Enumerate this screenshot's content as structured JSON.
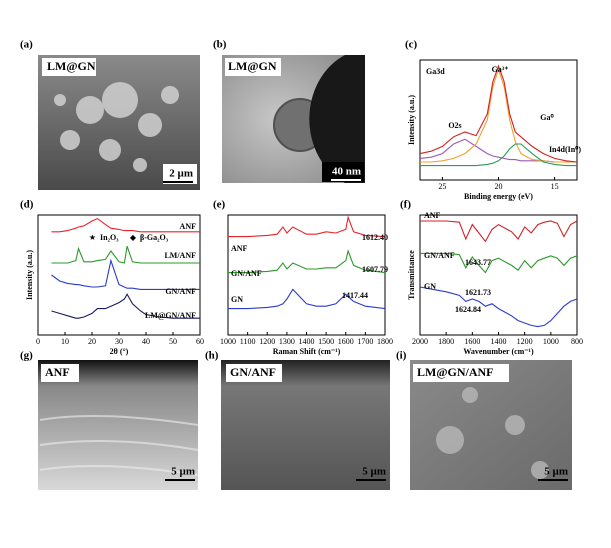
{
  "images": [
    {
      "panel_label": "(a)",
      "caption": "LM@GN",
      "scale_bar": "2 µm"
    },
    {
      "panel_label": "(b)",
      "caption": "LM@GN",
      "scale_bar": "40 nm"
    },
    {
      "panel_label": "(g)",
      "caption": "ANF",
      "scale_bar": "5 µm"
    },
    {
      "panel_label": "(h)",
      "caption": "GN/ANF",
      "scale_bar": "5 µm"
    },
    {
      "panel_label": "(i)",
      "caption": "LM@GN/ANF",
      "scale_bar": "5 µm"
    }
  ],
  "chart_data": [
    {
      "type": "line",
      "panel_label": "(c)",
      "x_label": "Binding energy (eV)",
      "y_label": "Intensity (a.u.)",
      "annotations": [
        "Ga3d",
        "O2s",
        "Ga³⁺",
        "Ga⁰",
        "In4d(In⁰)"
      ],
      "x": [
        27,
        26,
        25,
        24,
        23,
        22,
        21,
        20.5,
        20,
        19.5,
        19,
        18.5,
        18,
        17,
        16,
        15,
        14,
        13
      ],
      "xlim": [
        27,
        13
      ],
      "xticks": [
        25,
        20,
        15
      ],
      "ylim": [
        0,
        1
      ],
      "series": [
        {
          "color": "#9b59b6",
          "values": [
            0.18,
            0.19,
            0.22,
            0.3,
            0.34,
            0.28,
            0.22,
            0.2,
            0.19,
            0.18,
            0.17,
            0.17,
            0.16,
            0.16,
            0.16,
            0.15,
            0.15,
            0.15
          ]
        },
        {
          "color": "#f0a030",
          "values": [
            0.15,
            0.15,
            0.16,
            0.18,
            0.22,
            0.3,
            0.5,
            0.78,
            0.92,
            0.78,
            0.5,
            0.32,
            0.22,
            0.17,
            0.16,
            0.15,
            0.15,
            0.15
          ]
        },
        {
          "color": "#2e9a5a",
          "values": [
            0.12,
            0.12,
            0.12,
            0.12,
            0.12,
            0.12,
            0.13,
            0.14,
            0.16,
            0.2,
            0.26,
            0.3,
            0.3,
            0.22,
            0.15,
            0.13,
            0.12,
            0.12
          ]
        },
        {
          "color": "#d62020",
          "values": [
            0.22,
            0.24,
            0.28,
            0.36,
            0.4,
            0.37,
            0.55,
            0.82,
            0.95,
            0.82,
            0.55,
            0.4,
            0.36,
            0.28,
            0.22,
            0.18,
            0.16,
            0.15
          ]
        }
      ]
    },
    {
      "type": "line",
      "panel_label": "(d)",
      "x_label": "2θ (°)",
      "y_label": "Intensity (a.u.)",
      "annotations": [
        "In₂O₃",
        "β-Ga₂O₃"
      ],
      "x": [
        5,
        8,
        11,
        14,
        15,
        17,
        20,
        22,
        25,
        27,
        30,
        32,
        33,
        35,
        38,
        40,
        45,
        50,
        55,
        60
      ],
      "xlim": [
        0,
        60
      ],
      "xticks": [
        0,
        10,
        20,
        30,
        40,
        50,
        60
      ],
      "ylim": [
        0,
        1
      ],
      "series": [
        {
          "name": "ANF",
          "color": "#e8242a",
          "values": [
            0.86,
            0.86,
            0.87,
            0.89,
            0.9,
            0.91,
            0.95,
            0.97,
            0.92,
            0.89,
            0.88,
            0.87,
            0.87,
            0.87,
            0.86,
            0.86,
            0.86,
            0.86,
            0.86,
            0.86
          ]
        },
        {
          "name": "LM/ANF",
          "color": "#2a9a2a",
          "values": [
            0.6,
            0.6,
            0.6,
            0.62,
            0.72,
            0.61,
            0.61,
            0.62,
            0.63,
            0.7,
            0.61,
            0.6,
            0.74,
            0.61,
            0.6,
            0.6,
            0.6,
            0.6,
            0.6,
            0.6
          ]
        },
        {
          "name": "GN/ANF",
          "color": "#2a3ccc",
          "values": [
            0.5,
            0.45,
            0.43,
            0.42,
            0.42,
            0.41,
            0.4,
            0.4,
            0.41,
            0.62,
            0.42,
            0.4,
            0.39,
            0.39,
            0.38,
            0.38,
            0.38,
            0.38,
            0.38,
            0.38
          ]
        },
        {
          "name": "LM@GN/ANF",
          "color": "#1a1a5a",
          "values": [
            0.2,
            0.18,
            0.16,
            0.14,
            0.14,
            0.15,
            0.18,
            0.22,
            0.22,
            0.24,
            0.27,
            0.3,
            0.34,
            0.26,
            0.2,
            0.17,
            0.15,
            0.14,
            0.14,
            0.14
          ]
        }
      ]
    },
    {
      "type": "line",
      "panel_label": "(e)",
      "x_label": "Raman Shift (cm⁻¹)",
      "annotations": [
        "1612.40",
        "1607.79",
        "1417.44"
      ],
      "x": [
        1000,
        1100,
        1200,
        1250,
        1280,
        1300,
        1330,
        1400,
        1450,
        1500,
        1550,
        1600,
        1612,
        1640,
        1700,
        1800
      ],
      "xlim": [
        1000,
        1800
      ],
      "xticks": [
        1000,
        1100,
        1200,
        1300,
        1400,
        1500,
        1600,
        1700,
        1800
      ],
      "ylim": [
        0,
        1
      ],
      "series": [
        {
          "name": "ANF",
          "color": "#e8242a",
          "values": [
            0.82,
            0.82,
            0.83,
            0.84,
            0.9,
            0.85,
            0.9,
            0.84,
            0.84,
            0.86,
            0.85,
            0.88,
            0.98,
            0.86,
            0.83,
            0.82
          ]
        },
        {
          "name": "GN/ANF",
          "color": "#2a9a2a",
          "values": [
            0.52,
            0.52,
            0.53,
            0.54,
            0.6,
            0.55,
            0.6,
            0.55,
            0.55,
            0.56,
            0.56,
            0.62,
            0.7,
            0.58,
            0.54,
            0.52
          ]
        },
        {
          "name": "GN",
          "color": "#2a3ccc",
          "values": [
            0.22,
            0.22,
            0.23,
            0.24,
            0.26,
            0.3,
            0.38,
            0.26,
            0.24,
            0.24,
            0.26,
            0.34,
            0.32,
            0.28,
            0.24,
            0.22
          ]
        }
      ]
    },
    {
      "type": "line",
      "panel_label": "(f)",
      "x_label": "Wavenumber (cm⁻¹)",
      "y_label": "Transmittance",
      "annotations": [
        "1643.77",
        "1621.73",
        "1624.84"
      ],
      "x": [
        2000,
        1900,
        1800,
        1700,
        1650,
        1600,
        1550,
        1500,
        1450,
        1400,
        1300,
        1250,
        1200,
        1150,
        1100,
        1050,
        1000,
        950,
        900,
        850,
        800
      ],
      "xlim": [
        2000,
        800
      ],
      "xticks": [
        2000,
        1800,
        1600,
        1400,
        1200,
        1000,
        800
      ],
      "ylim": [
        0,
        1
      ],
      "series": [
        {
          "name": "ANF",
          "color": "#d0202a",
          "values": [
            0.95,
            0.95,
            0.95,
            0.94,
            0.8,
            0.92,
            0.85,
            0.78,
            0.88,
            0.92,
            0.86,
            0.8,
            0.9,
            0.85,
            0.92,
            0.94,
            0.95,
            0.93,
            0.82,
            0.92,
            0.95
          ]
        },
        {
          "name": "GN/ANF",
          "color": "#2a9a2a",
          "values": [
            0.68,
            0.68,
            0.68,
            0.67,
            0.56,
            0.65,
            0.58,
            0.52,
            0.62,
            0.64,
            0.58,
            0.54,
            0.62,
            0.56,
            0.62,
            0.64,
            0.66,
            0.64,
            0.58,
            0.64,
            0.66
          ]
        },
        {
          "name": "GN",
          "color": "#2a3ccc",
          "values": [
            0.4,
            0.38,
            0.36,
            0.33,
            0.28,
            0.3,
            0.28,
            0.24,
            0.26,
            0.22,
            0.16,
            0.12,
            0.1,
            0.08,
            0.07,
            0.08,
            0.12,
            0.18,
            0.24,
            0.28,
            0.3
          ]
        }
      ]
    }
  ]
}
